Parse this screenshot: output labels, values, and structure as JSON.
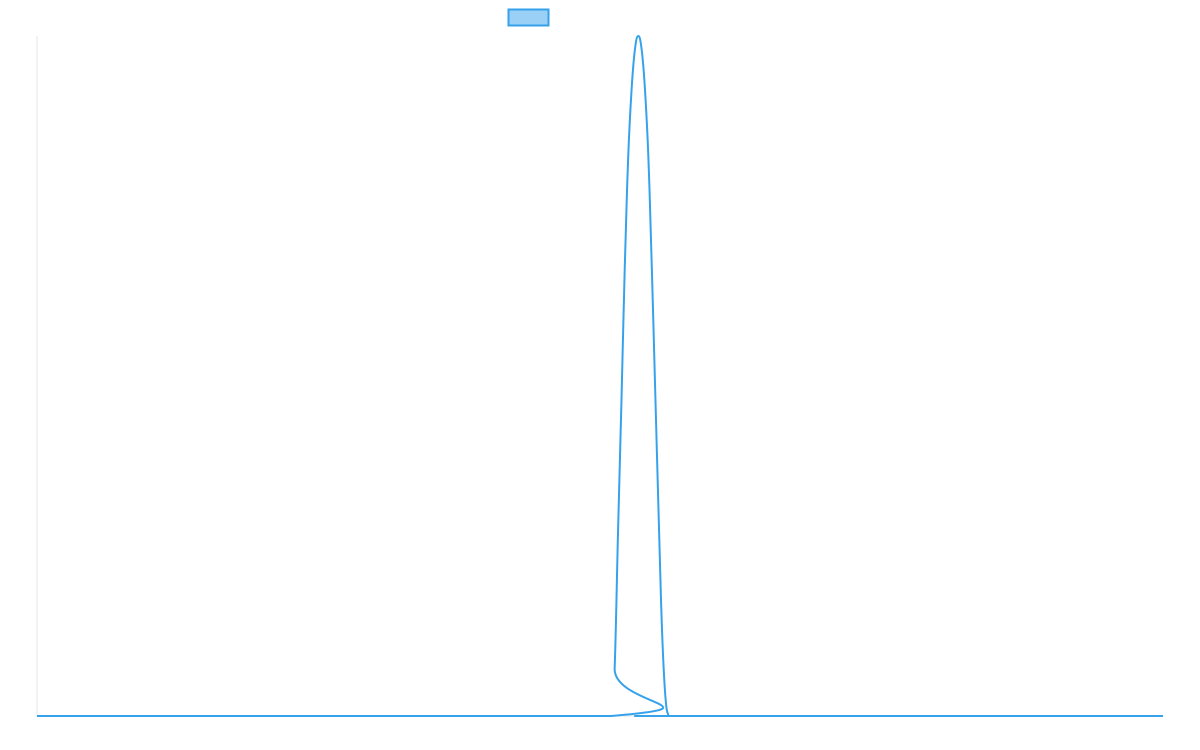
{
  "chart_data": {
    "type": "line",
    "title": "",
    "xlabel": "",
    "ylabel": "",
    "grid": false,
    "legend": {
      "position": "top-center",
      "entries": [
        {
          "label": "",
          "color": "#36a2eb",
          "fill": "#9ad0f5"
        }
      ]
    },
    "xlim": [
      0,
      100
    ],
    "ylim": [
      0,
      1
    ],
    "series": [
      {
        "color": "#36a2eb",
        "x": [
          0,
          51,
          51.3,
          51.6,
          51.9,
          52.2,
          52.5,
          52.8,
          53.1,
          53.4,
          53.7,
          54,
          54.3,
          54.6,
          54.9,
          55.2,
          55.5,
          55.8,
          56.1,
          56.4,
          56.7,
          57,
          100
        ],
        "y": [
          0,
          0,
          0.07,
          0.27,
          0.46,
          0.66,
          0.82,
          0.92,
          0.98,
          1.0,
          0.98,
          0.92,
          0.82,
          0.66,
          0.48,
          0.3,
          0.13,
          0.03,
          0,
          0,
          0,
          0,
          0
        ]
      }
    ]
  },
  "colors": {
    "series": "#36a2eb",
    "legend_fill": "#9ad0f5",
    "axis": "#e5e5e5",
    "background": "#ffffff"
  }
}
